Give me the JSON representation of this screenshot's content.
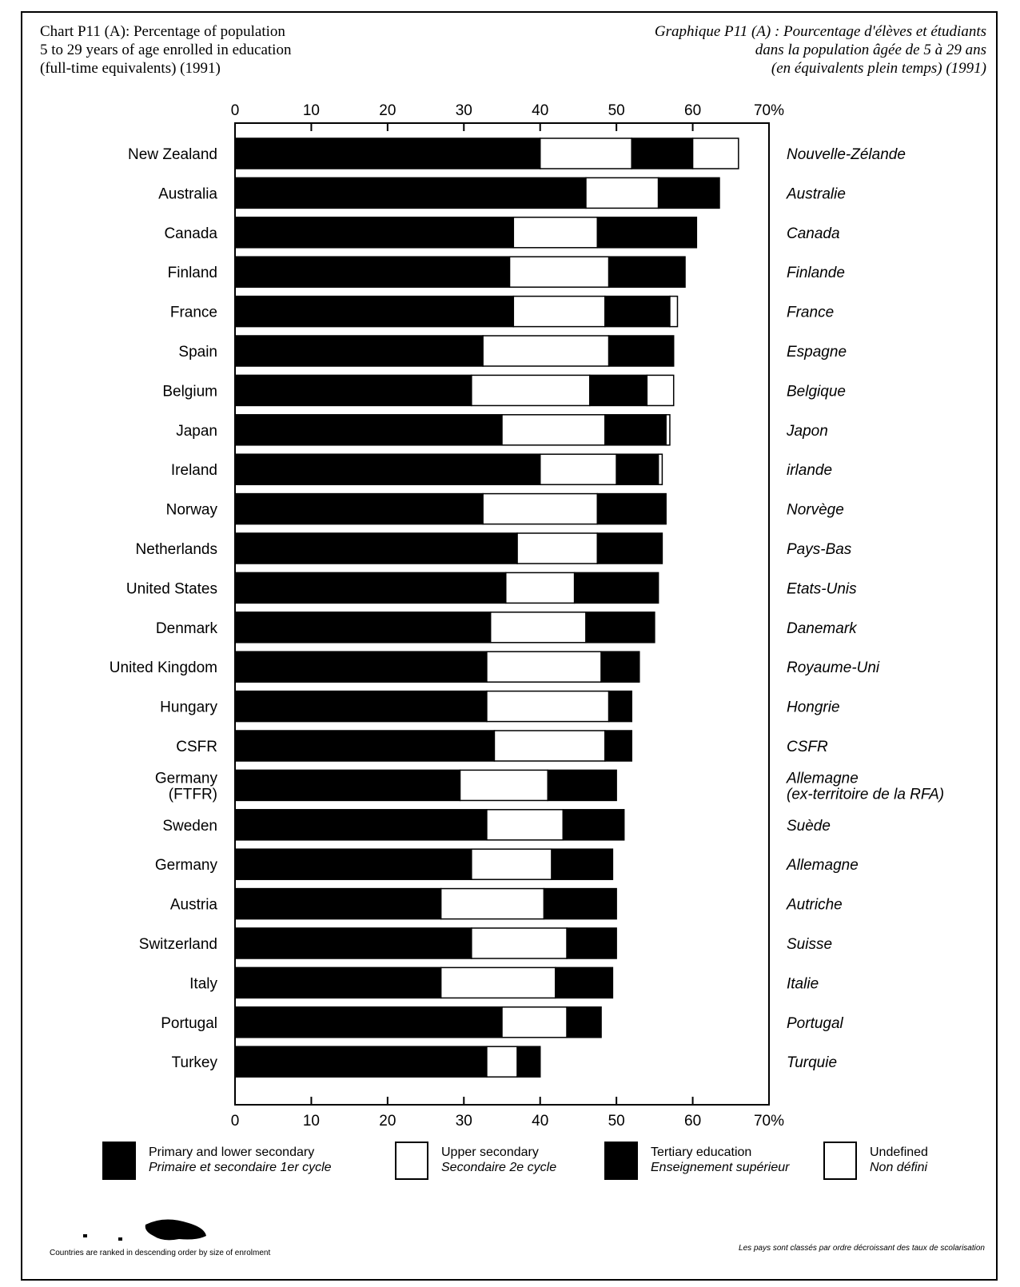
{
  "title_en": "Chart P11 (A): Percentage of population\n5 to 29 years of age enrolled in education\n(full-time equivalents) (1991)",
  "title_fr": "Graphique P11 (A) : Pourcentage d'élèves et étudiants\ndans la population âgée de 5 à 29 ans\n(en équivalents plein temps) (1991)",
  "chart_data": {
    "type": "bar",
    "orientation": "horizontal",
    "stacked": true,
    "xlim": [
      0,
      70
    ],
    "tick_labels": [
      "0",
      "10",
      "20",
      "30",
      "40",
      "50",
      "60",
      "70%"
    ],
    "categories": [
      "New Zealand",
      "Australia",
      "Canada",
      "Finland",
      "France",
      "Spain",
      "Belgium",
      "Japan",
      "Ireland",
      "Norway",
      "Netherlands",
      "United States",
      "Denmark",
      "United Kingdom",
      "Hungary",
      "CSFR",
      "Germany\n(FTFR)",
      "Sweden",
      "Germany",
      "Austria",
      "Switzerland",
      "Italy",
      "Portugal",
      "Turkey"
    ],
    "categories_fr": [
      "Nouvelle-Zélande",
      "Australie",
      "Canada",
      "Finlande",
      "France",
      "Espagne",
      "Belgique",
      "Japon",
      "irlande",
      "Norvège",
      "Pays-Bas",
      "Etats-Unis",
      "Danemark",
      "Royaume-Uni",
      "Hongrie",
      "CSFR",
      "Allemagne\n(ex-territoire de la RFA)",
      "Suède",
      "Allemagne",
      "Autriche",
      "Suisse",
      "Italie",
      "Portugal",
      "Turquie"
    ],
    "series": [
      {
        "name": "Primary and lower secondary",
        "name_fr": "Primaire et secondaire 1er cycle",
        "color": "#000000",
        "values": [
          40,
          46,
          36.5,
          36,
          36.5,
          32.5,
          31,
          35,
          40,
          32.5,
          37,
          35.5,
          33.5,
          33,
          33,
          34,
          29.5,
          33,
          31,
          27,
          31,
          27,
          35,
          33
        ]
      },
      {
        "name": "Upper secondary",
        "name_fr": "Secondaire 2e cycle",
        "color": "#ffffff",
        "values": [
          12,
          9.5,
          11,
          13,
          12,
          16.5,
          15.5,
          13.5,
          10,
          15,
          10.5,
          9,
          12.5,
          15,
          16,
          14.5,
          11.5,
          10,
          10.5,
          13.5,
          12.5,
          15,
          8.5,
          4
        ]
      },
      {
        "name": "Tertiary education",
        "name_fr": "Enseignement supérieur",
        "color": "#000000",
        "values": [
          8,
          8,
          13,
          10,
          8.5,
          8.5,
          7.5,
          8,
          5.5,
          9,
          8.5,
          11,
          9,
          5,
          3,
          3.5,
          9,
          8,
          8,
          9.5,
          6.5,
          7.5,
          4.5,
          3
        ]
      },
      {
        "name": "Undefined",
        "name_fr": "Non défini",
        "color": "#ffffff",
        "values": [
          6,
          0,
          0,
          0,
          1,
          0,
          3.5,
          0.5,
          0.5,
          0,
          0,
          0,
          0,
          0,
          0,
          0,
          0,
          0,
          0,
          0,
          0,
          0,
          0,
          0
        ]
      }
    ],
    "legend_placement": "bottom",
    "grid": false
  },
  "legend": [
    {
      "en": "Primary and lower secondary",
      "fr": "Primaire et secondaire 1er cycle",
      "color": "#000000"
    },
    {
      "en": "Upper secondary",
      "fr": "Secondaire 2e cycle",
      "color": "#ffffff"
    },
    {
      "en": "Tertiary education",
      "fr": "Enseignement supérieur",
      "color": "#000000"
    },
    {
      "en": "Undefined",
      "fr": "Non défini",
      "color": "#ffffff"
    }
  ],
  "footnote_en": "Countries are ranked in descending order by size of enrolment",
  "footnote_fr": "Les pays sont classés par ordre décroissant des taux de scolarisation"
}
